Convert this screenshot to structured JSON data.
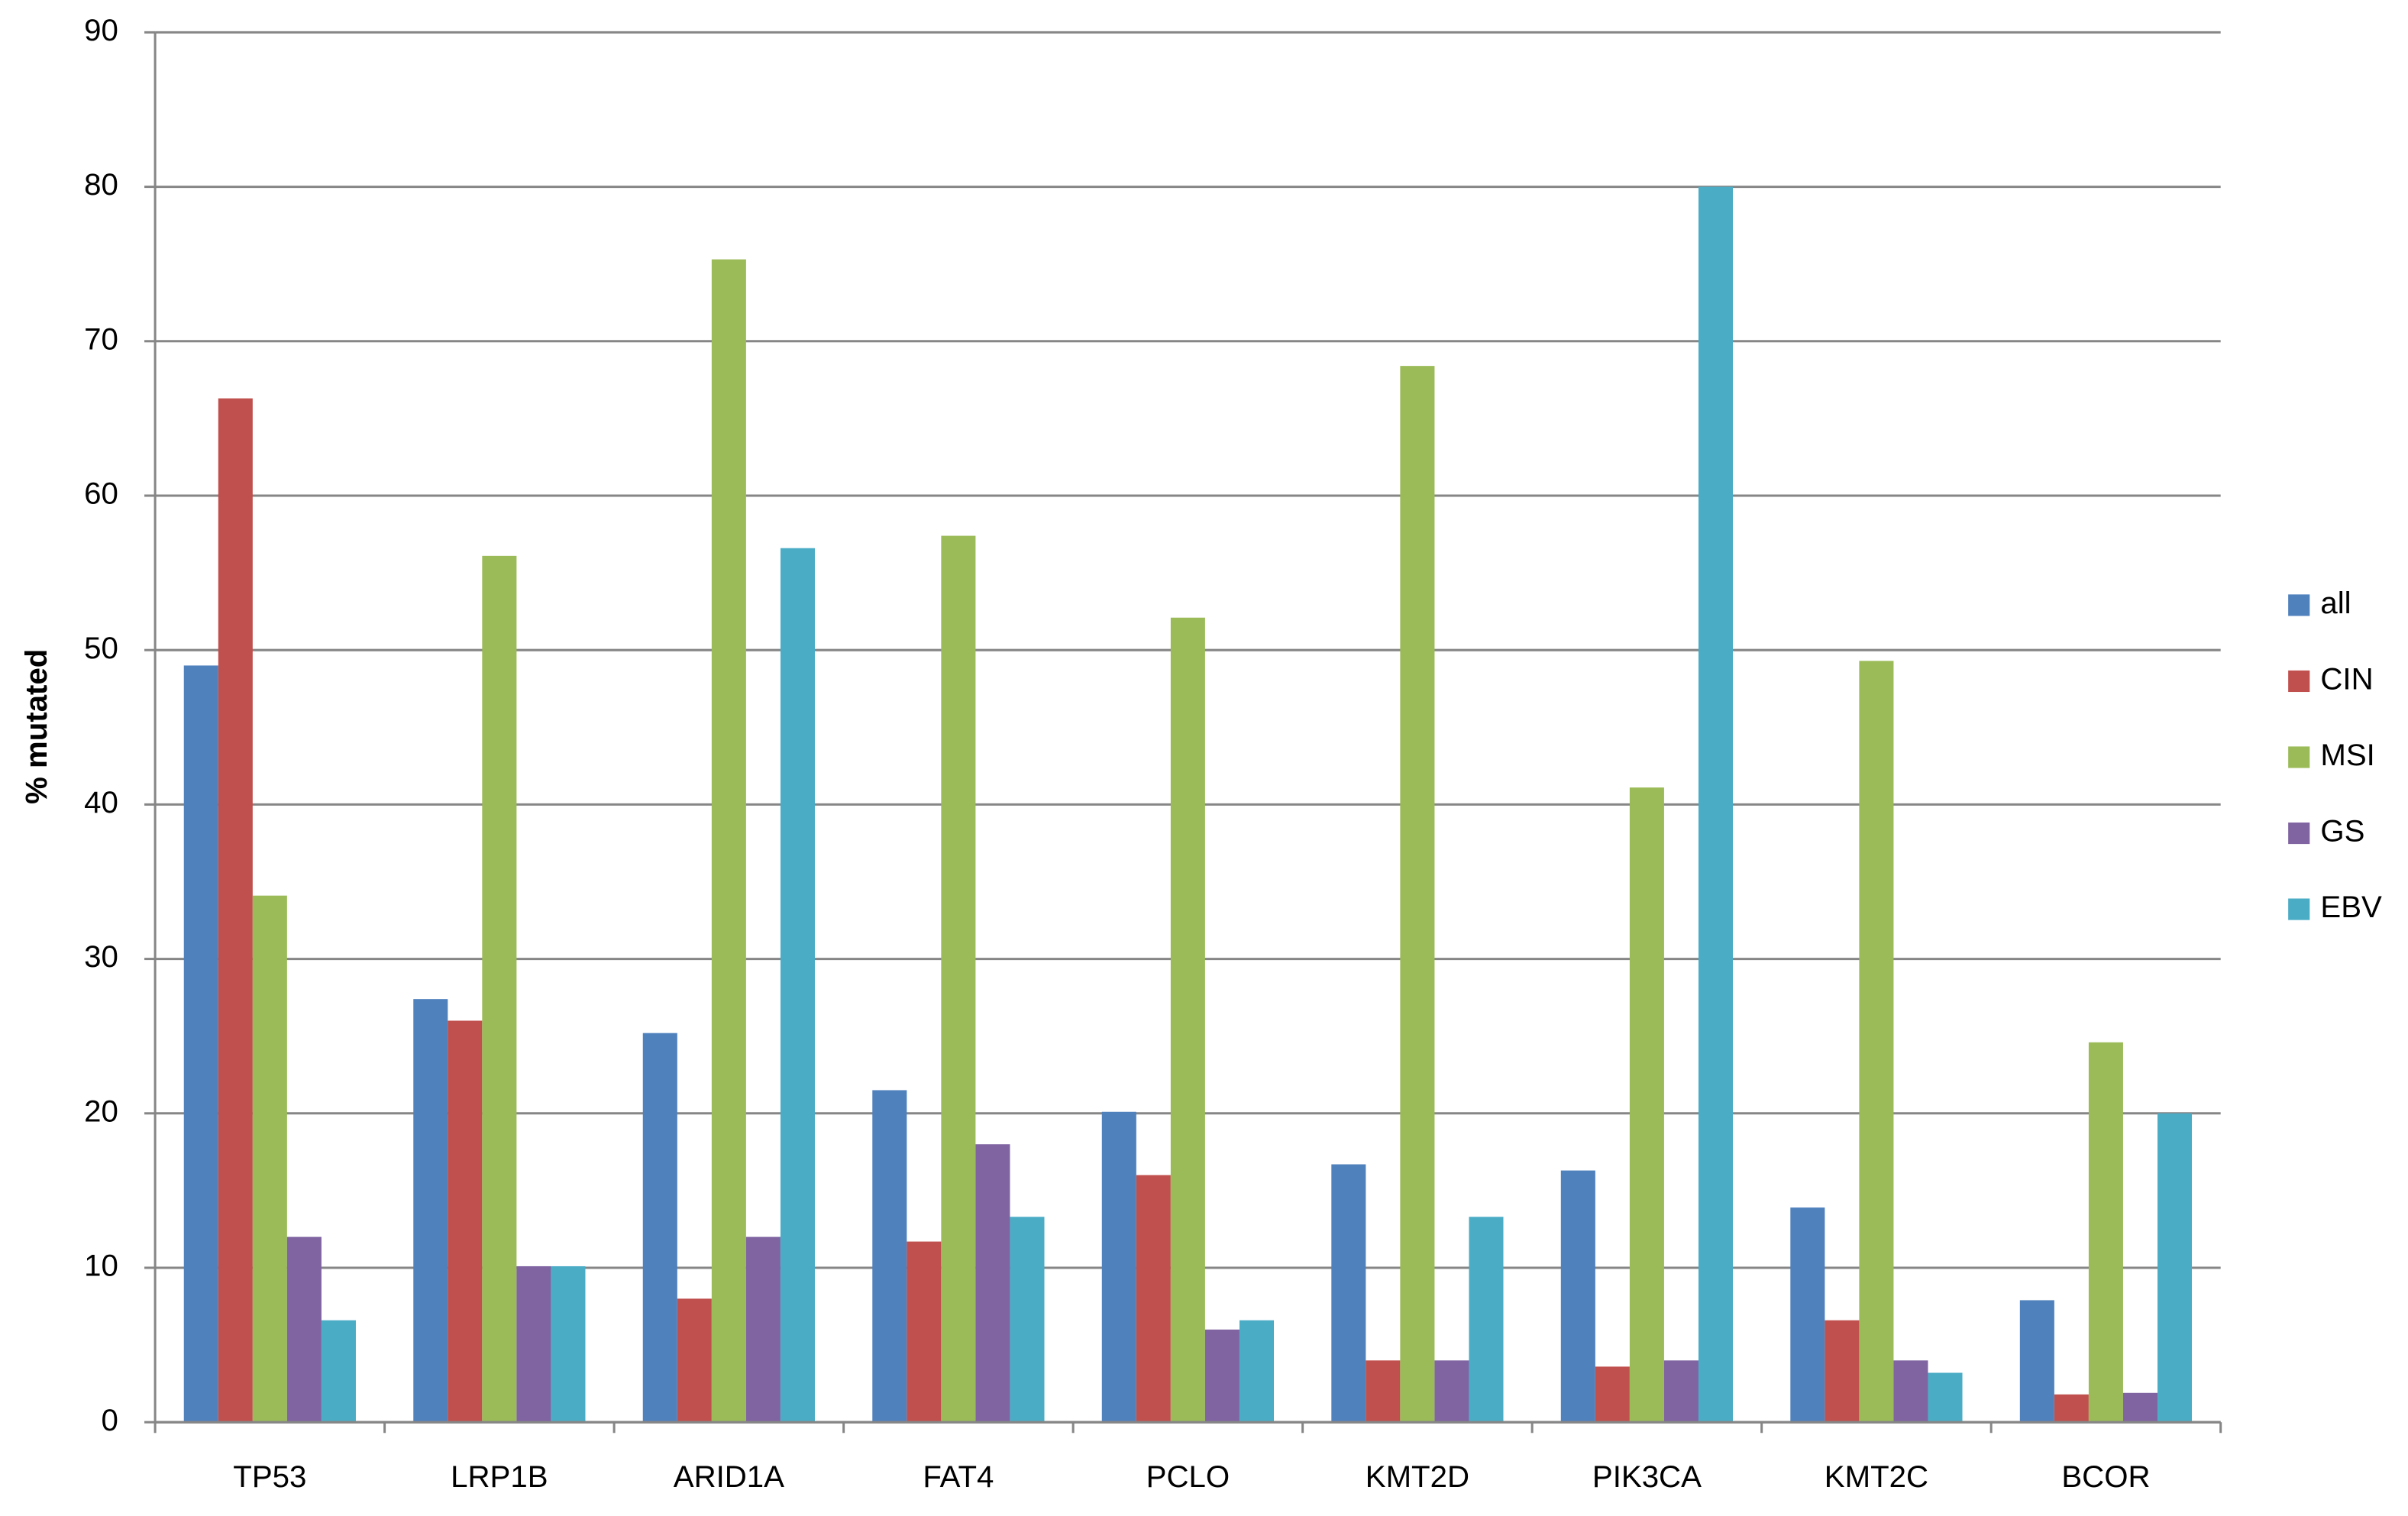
{
  "chart_data": {
    "type": "bar",
    "y_label": "% mutated",
    "categories": [
      "TP53",
      "LRP1B",
      "ARID1A",
      "FAT4",
      "PCLO",
      "KMT2D",
      "PIK3CA",
      "KMT2C",
      "BCOR"
    ],
    "series": [
      {
        "name": "all",
        "color": "#4f81bd",
        "values": [
          49,
          27.4,
          25.2,
          21.5,
          20.1,
          16.7,
          16.3,
          13.9,
          7.9
        ]
      },
      {
        "name": "CIN",
        "color": "#c0504d",
        "values": [
          66.3,
          26,
          8,
          11.7,
          16,
          4,
          3.6,
          6.6,
          1.8
        ]
      },
      {
        "name": "MSI",
        "color": "#9bbb59",
        "values": [
          34.1,
          56.1,
          75.3,
          57.4,
          52.1,
          68.4,
          41.1,
          49.3,
          24.6
        ]
      },
      {
        "name": "GS",
        "color": "#8064a2",
        "values": [
          12,
          10.1,
          12,
          18,
          6,
          4,
          4,
          4,
          1.9
        ]
      },
      {
        "name": "EBV",
        "color": "#4bacc6",
        "values": [
          6.6,
          10.1,
          56.6,
          13.3,
          6.6,
          13.3,
          80,
          3.2,
          20
        ]
      }
    ],
    "ylim": [
      0,
      90
    ],
    "yticks": [
      0,
      10,
      20,
      30,
      40,
      50,
      60,
      70,
      80,
      90
    ],
    "grid": true,
    "legend": "right"
  }
}
